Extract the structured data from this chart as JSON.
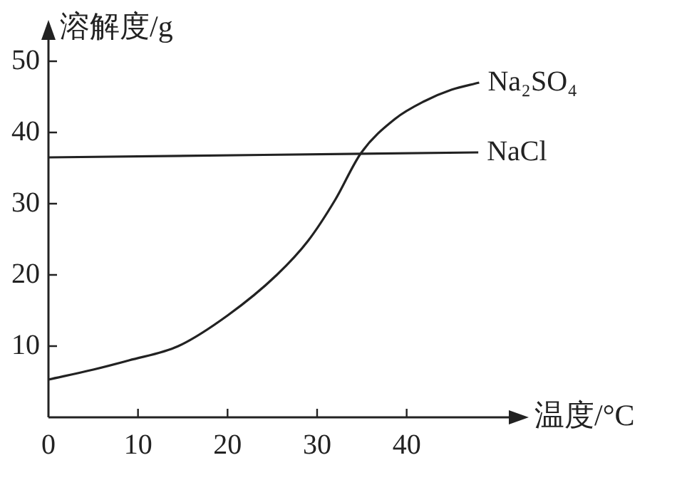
{
  "chart_data": {
    "type": "line",
    "xlabel": "温度/°C",
    "ylabel": "溶解度/g",
    "xlim": [
      0,
      53
    ],
    "ylim": [
      0,
      55
    ],
    "xticks": [
      0,
      10,
      20,
      30,
      40
    ],
    "yticks": [
      10,
      20,
      30,
      40,
      50
    ],
    "marker": "none",
    "legend": false,
    "series": [
      {
        "name": "Na₂SO₄",
        "color": "#222222",
        "x": [
          0,
          5,
          9,
          14.5,
          20,
          25.5,
          29,
          32,
          34.9,
          38.7,
          42,
          45,
          48.1
        ],
        "values": [
          5.3,
          6.7,
          8,
          10,
          14.3,
          20,
          24.8,
          30.5,
          37.1,
          41.9,
          44.4,
          46,
          47
        ]
      },
      {
        "name": "NaCl",
        "color": "#222222",
        "x": [
          0,
          48
        ],
        "values": [
          36.5,
          37.2
        ]
      }
    ]
  }
}
